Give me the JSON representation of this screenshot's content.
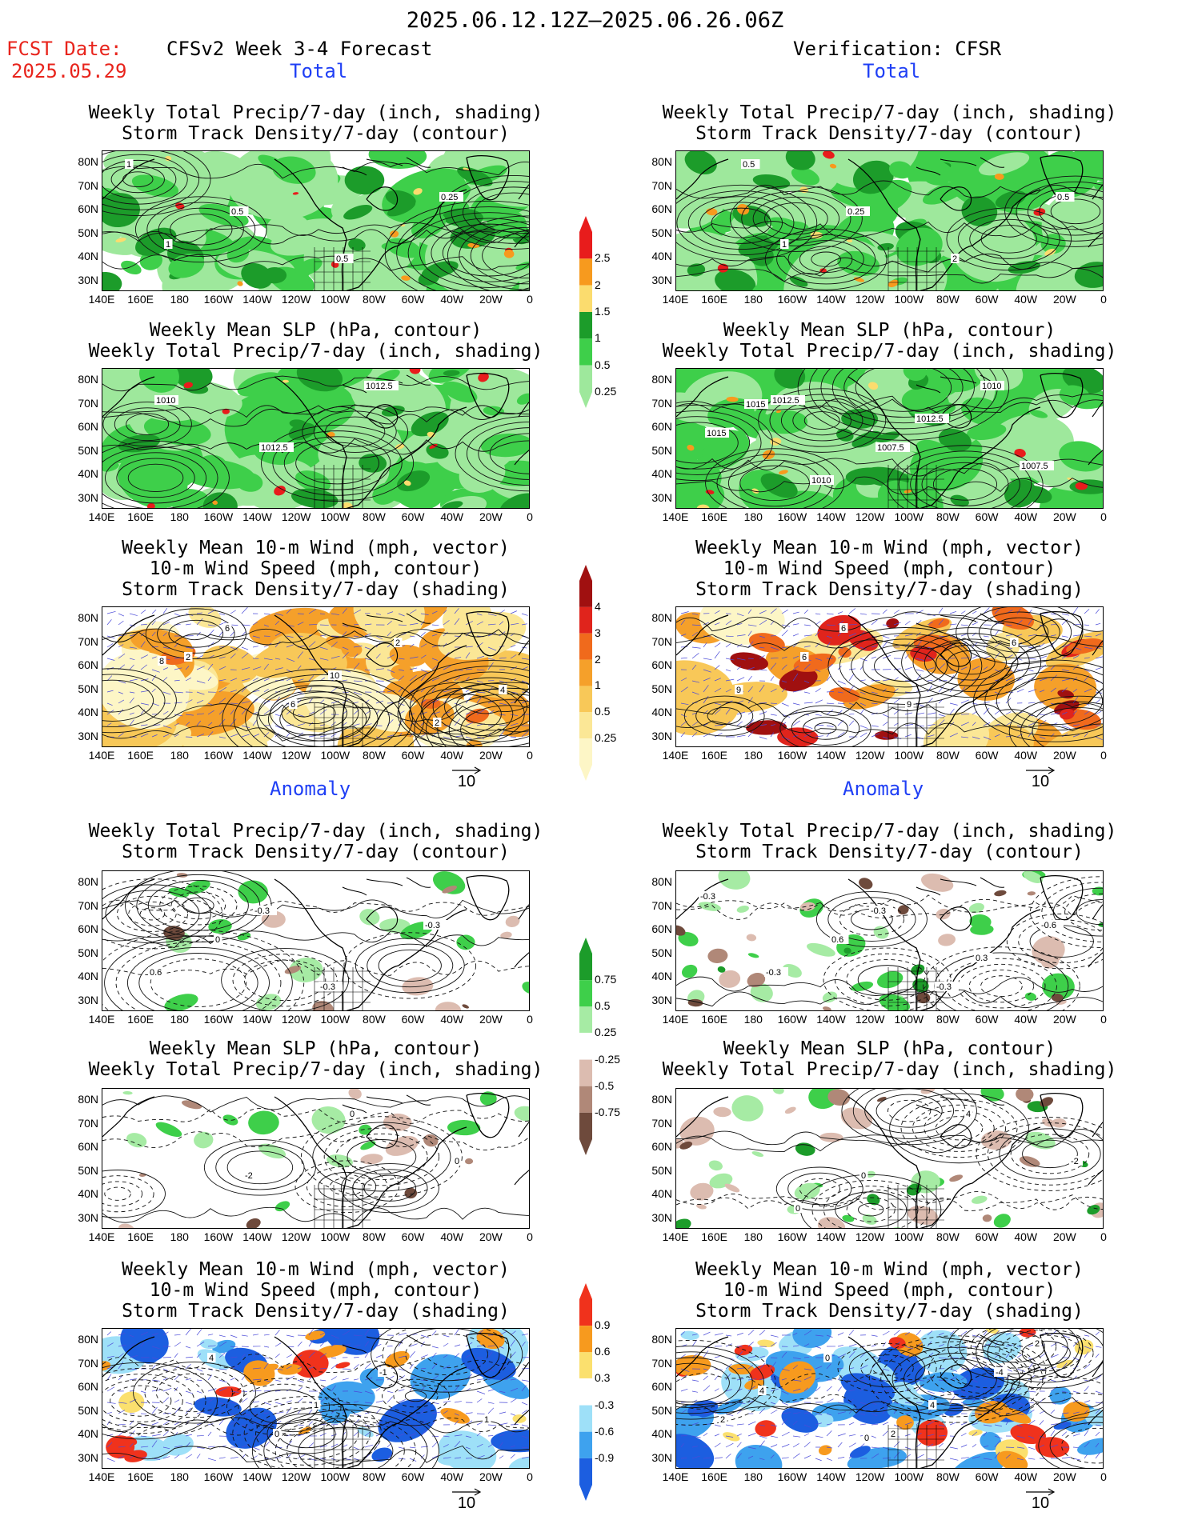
{
  "main_title": "2025.06.12.12Z‒2025.06.26.06Z",
  "fcst_label": "FCST Date:",
  "fcst_date": "2025.05.29",
  "left_header": "CFSv2 Week 3-4 Forecast",
  "right_header": "Verification: CFSR",
  "section_total": "Total",
  "section_anomaly": "Anomaly",
  "panel_titles": {
    "precip_storm": [
      "Weekly Total Precip/7-day (inch, shading)",
      "Storm Track Density/7-day (contour)"
    ],
    "slp_precip": [
      "Weekly Mean SLP (hPa, contour)",
      "Weekly Total Precip/7-day (inch, shading)"
    ],
    "wind_storm": [
      "Weekly Mean 10-m Wind (mph, vector)",
      "10-m Wind Speed (mph, contour)",
      "Storm Track Density/7-day (shading)"
    ]
  },
  "lat_labels": [
    "80N",
    "70N",
    "60N",
    "50N",
    "40N",
    "30N"
  ],
  "lon_labels": [
    "140E",
    "160E",
    "180",
    "160W",
    "140W",
    "120W",
    "100W",
    "80W",
    "60W",
    "40W",
    "20W",
    "0"
  ],
  "vector_ref": "10",
  "colorbars": {
    "precip_total": {
      "labels": [
        "2.5",
        "2",
        "1.5",
        "1",
        "0.5",
        "0.25"
      ],
      "colors": [
        "#e81c1c",
        "#f79a1e",
        "#fbdc6e",
        "#1c9c2a",
        "#3ecf4a",
        "#9ee89c"
      ]
    },
    "storm_total": {
      "labels": [
        "4",
        "3",
        "2",
        "1",
        "0.5",
        "0.25"
      ],
      "colors": [
        "#a01010",
        "#e0241c",
        "#f06a1c",
        "#f5a02a",
        "#f8c858",
        "#fbe796",
        "#fdf6c6"
      ]
    },
    "precip_anom": {
      "labels": [
        "0.75",
        "0.5",
        "0.25",
        "-0.25",
        "-0.5",
        "-0.75"
      ],
      "colors": [
        "#1c9c2a",
        "#3ecf4a",
        "#a6eba4",
        "#ffffff",
        "#dcbcb0",
        "#b08878",
        "#6e4a3c"
      ]
    },
    "storm_anom": {
      "labels": [
        "0.9",
        "0.6",
        "0.3",
        "-0.3",
        "-0.6",
        "-0.9"
      ],
      "colors": [
        "#f0321c",
        "#f79a1e",
        "#fbe06e",
        "#ffffff",
        "#9ee0f8",
        "#3ea2ee",
        "#1c5ee0"
      ]
    }
  },
  "contour_labels": {
    "l1": [
      "1",
      "0.5",
      "0.5",
      "0.25",
      "1"
    ],
    "r1": [
      "0.5",
      "0.25",
      "2",
      "0.5",
      "1"
    ],
    "l2": [
      "1010",
      "1012.5",
      "1012.5"
    ],
    "r2": [
      "1012.5",
      "1007.5",
      "1010",
      "1015",
      "1010",
      "1012.5",
      "1007.5",
      "1015"
    ],
    "l3": [
      "2",
      "6",
      "2",
      "4",
      "6",
      "10",
      "2",
      "8"
    ],
    "r3": [
      "6",
      "9",
      "6",
      "9",
      "6"
    ],
    "l4": [
      "0",
      "-0.3",
      "-0.3",
      "0.6",
      "-0.3"
    ],
    "r4": [
      "0.6",
      "-0.3",
      "-0.6",
      "-0.3",
      "-0.3",
      "0.3",
      "-0.3"
    ],
    "l5": [
      "-2",
      "0",
      "0"
    ],
    "r5": [
      "0",
      "4",
      "-2",
      "0"
    ],
    "l6": [
      "0",
      "-1",
      "1",
      "4",
      "1"
    ],
    "r6": [
      "2",
      "-4",
      "2",
      "0",
      "4",
      "2",
      "4",
      "0"
    ]
  }
}
